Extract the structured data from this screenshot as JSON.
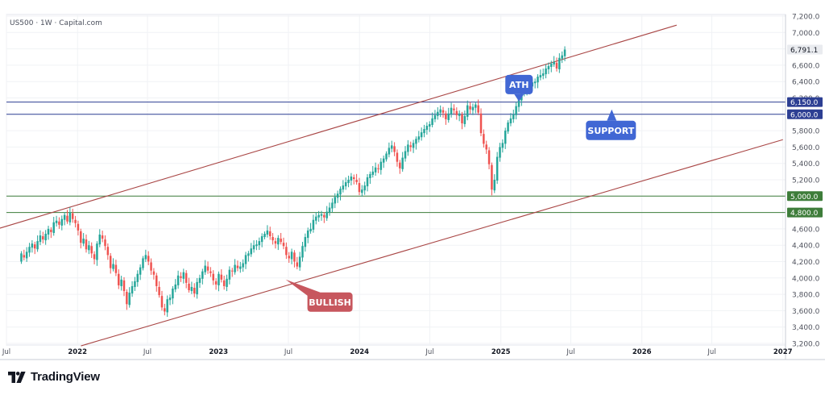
{
  "header": {
    "symbol_label": "US500 · 1W · Capital.com"
  },
  "brand": {
    "name": "TradingView",
    "icon": "tradingview-logo-icon"
  },
  "colors": {
    "up": "#26a69a",
    "down": "#ef5350",
    "channel": "#a94645",
    "resistance_line": "#2d3f93",
    "support_line": "#3e7d3a",
    "callout_blue": "#4167d4",
    "callout_red": "#c7575e"
  },
  "chart_data": {
    "type": "candlestick",
    "title": "",
    "xlabel": "",
    "ylabel": "",
    "x_ticks": [
      "Jul",
      "2022",
      "Jul",
      "2023",
      "Jul",
      "2024",
      "Jul",
      "2025",
      "Jul",
      "2026",
      "Jul",
      "2027"
    ],
    "y_ticks": [
      "7,200.0",
      "7,000.0",
      "6,800.0",
      "6,600.0",
      "6,400.0",
      "6,200.0",
      "6,000.0",
      "5,800.0",
      "5,600.0",
      "5,400.0",
      "5,200.0",
      "5,000.0",
      "4,800.0",
      "4,600.0",
      "4,400.0",
      "4,200.0",
      "4,000.0",
      "3,800.0",
      "3,600.0",
      "3,400.0",
      "3,200.0"
    ],
    "ylim": [
      3150,
      7250
    ],
    "last_price": {
      "value": 6791.1,
      "label": "6,791.1"
    },
    "horizontal_levels": [
      {
        "value": 6150,
        "label": "6,150.0",
        "color": "#2d3f93"
      },
      {
        "value": 6000,
        "label": "6,000.0",
        "color": "#2d3f93"
      },
      {
        "value": 5000,
        "label": "5,000.0",
        "color": "#3e7d3a"
      },
      {
        "value": 4800,
        "label": "4,800.0",
        "color": "#3e7d3a"
      }
    ],
    "annotations": [
      {
        "text": "ATH",
        "anchor_date": "2025-02-17",
        "anchor_price": 6147
      },
      {
        "text": "SUPPORT",
        "anchor_date": "2025-10-15",
        "anchor_price": 6000
      },
      {
        "text": "BULLISH",
        "anchor_date": "2023-08-15",
        "anchor_price": 4000
      }
    ],
    "channel": {
      "upper": {
        "start": [
          "2021-06-01",
          4590
        ],
        "end": [
          "2026-04-01",
          7090
        ]
      },
      "lower": {
        "start": [
          "2022-01-10",
          3170
        ],
        "end": [
          "2027-01-01",
          5690
        ]
      }
    },
    "series": [
      {
        "values": [
          [
            4200,
            4300
          ],
          [
            4280,
            4250
          ],
          [
            4240,
            4320
          ],
          [
            4310,
            4380
          ],
          [
            4370,
            4420
          ],
          [
            4410,
            4360
          ],
          [
            4350,
            4450
          ],
          [
            4440,
            4520
          ],
          [
            4510,
            4470
          ],
          [
            4460,
            4540
          ],
          [
            4530,
            4600
          ],
          [
            4590,
            4560
          ],
          [
            4550,
            4680
          ],
          [
            4670,
            4700
          ],
          [
            4690,
            4650
          ],
          [
            4640,
            4720
          ],
          [
            4710,
            4770
          ],
          [
            4760,
            4690
          ],
          [
            4680,
            4800
          ],
          [
            4790,
            4720
          ],
          [
            4710,
            4670
          ],
          [
            4660,
            4580
          ],
          [
            4570,
            4430
          ],
          [
            4420,
            4480
          ],
          [
            4470,
            4350
          ],
          [
            4340,
            4400
          ],
          [
            4390,
            4300
          ],
          [
            4290,
            4230
          ],
          [
            4220,
            4420
          ],
          [
            4410,
            4530
          ],
          [
            4520,
            4480
          ],
          [
            4470,
            4390
          ],
          [
            4380,
            4280
          ],
          [
            4270,
            4120
          ],
          [
            4110,
            4170
          ],
          [
            4160,
            4060
          ],
          [
            4050,
            3910
          ],
          [
            3900,
            3980
          ],
          [
            3970,
            3840
          ],
          [
            3830,
            3680
          ],
          [
            3670,
            3820
          ],
          [
            3810,
            3900
          ],
          [
            3890,
            3960
          ],
          [
            3950,
            4050
          ],
          [
            4040,
            4130
          ],
          [
            4120,
            4240
          ],
          [
            4230,
            4280
          ],
          [
            4270,
            4200
          ],
          [
            4190,
            4090
          ],
          [
            4080,
            4040
          ],
          [
            4030,
            3900
          ],
          [
            3890,
            3790
          ],
          [
            3780,
            3640
          ],
          [
            3630,
            3590
          ],
          [
            3580,
            3740
          ],
          [
            3730,
            3760
          ],
          [
            3750,
            3870
          ],
          [
            3860,
            3920
          ],
          [
            3910,
            4030
          ],
          [
            4020,
            4000
          ],
          [
            3990,
            4070
          ],
          [
            4060,
            3940
          ],
          [
            3930,
            3850
          ],
          [
            3840,
            3890
          ],
          [
            3880,
            3810
          ],
          [
            3800,
            3950
          ],
          [
            3940,
            4000
          ],
          [
            3990,
            4080
          ],
          [
            4070,
            4150
          ],
          [
            4140,
            4090
          ],
          [
            4080,
            4060
          ],
          [
            4050,
            3970
          ],
          [
            3960,
            3920
          ],
          [
            3910,
            4050
          ],
          [
            4040,
            3980
          ],
          [
            3970,
            3900
          ],
          [
            3890,
            3990
          ],
          [
            3980,
            4100
          ],
          [
            4090,
            4080
          ],
          [
            4070,
            4160
          ],
          [
            4150,
            4120
          ],
          [
            4110,
            4140
          ],
          [
            4130,
            4180
          ],
          [
            4170,
            4280
          ],
          [
            4270,
            4300
          ],
          [
            4290,
            4360
          ],
          [
            4350,
            4400
          ],
          [
            4390,
            4410
          ],
          [
            4400,
            4450
          ],
          [
            4440,
            4510
          ],
          [
            4500,
            4540
          ],
          [
            4530,
            4580
          ],
          [
            4570,
            4510
          ],
          [
            4500,
            4460
          ],
          [
            4450,
            4420
          ],
          [
            4410,
            4490
          ],
          [
            4480,
            4440
          ],
          [
            4430,
            4390
          ],
          [
            4380,
            4280
          ],
          [
            4270,
            4240
          ],
          [
            4230,
            4320
          ],
          [
            4310,
            4200
          ],
          [
            4190,
            4140
          ],
          [
            4130,
            4260
          ],
          [
            4250,
            4390
          ],
          [
            4380,
            4500
          ],
          [
            4490,
            4580
          ],
          [
            4570,
            4600
          ],
          [
            4590,
            4710
          ],
          [
            4700,
            4750
          ],
          [
            4740,
            4770
          ],
          [
            4760,
            4780
          ],
          [
            4770,
            4740
          ],
          [
            4730,
            4810
          ],
          [
            4800,
            4860
          ],
          [
            4850,
            4920
          ],
          [
            4910,
            4990
          ],
          [
            4980,
            5030
          ],
          [
            5020,
            5090
          ],
          [
            5080,
            5130
          ],
          [
            5120,
            5170
          ],
          [
            5160,
            5200
          ],
          [
            5190,
            5240
          ],
          [
            5230,
            5210
          ],
          [
            5200,
            5170
          ],
          [
            5160,
            5050
          ],
          [
            5040,
            5080
          ],
          [
            5070,
            5130
          ],
          [
            5120,
            5230
          ],
          [
            5220,
            5270
          ],
          [
            5260,
            5300
          ],
          [
            5290,
            5350
          ],
          [
            5340,
            5330
          ],
          [
            5320,
            5420
          ],
          [
            5410,
            5460
          ],
          [
            5450,
            5520
          ],
          [
            5510,
            5590
          ],
          [
            5580,
            5620
          ],
          [
            5610,
            5540
          ],
          [
            5530,
            5420
          ],
          [
            5410,
            5340
          ],
          [
            5330,
            5470
          ],
          [
            5460,
            5550
          ],
          [
            5540,
            5630
          ],
          [
            5620,
            5600
          ],
          [
            5590,
            5650
          ],
          [
            5640,
            5700
          ],
          [
            5690,
            5730
          ],
          [
            5720,
            5780
          ],
          [
            5770,
            5820
          ],
          [
            5810,
            5860
          ],
          [
            5850,
            5880
          ],
          [
            5870,
            5950
          ],
          [
            5940,
            5990
          ],
          [
            5980,
            6030
          ],
          [
            6020,
            6060
          ],
          [
            6050,
            6020
          ],
          [
            6010,
            5940
          ],
          [
            5930,
            6010
          ],
          [
            6000,
            6080
          ],
          [
            6070,
            6050
          ],
          [
            6040,
            5990
          ],
          [
            5980,
            6010
          ],
          [
            6000,
            5890
          ],
          [
            5880,
            5980
          ],
          [
            5970,
            6110
          ],
          [
            6100,
            6060
          ],
          [
            6050,
            6090
          ],
          [
            6080,
            6120
          ],
          [
            6110,
            6020
          ],
          [
            6010,
            5770
          ],
          [
            5760,
            5640
          ],
          [
            5630,
            5570
          ],
          [
            5560,
            5390
          ],
          [
            5380,
            5080
          ],
          [
            5070,
            5200
          ],
          [
            5190,
            5480
          ],
          [
            5470,
            5600
          ],
          [
            5590,
            5650
          ],
          [
            5640,
            5800
          ],
          [
            5790,
            5900
          ],
          [
            5890,
            5950
          ],
          [
            5940,
            6000
          ],
          [
            5990,
            6100
          ],
          [
            6090,
            6180
          ],
          [
            6170,
            6260
          ],
          [
            6250,
            6280
          ],
          [
            6270,
            6300
          ],
          [
            6290,
            6350
          ],
          [
            6340,
            6390
          ],
          [
            6380,
            6400
          ],
          [
            6390,
            6460
          ],
          [
            6450,
            6480
          ],
          [
            6470,
            6500
          ],
          [
            6490,
            6560
          ],
          [
            6550,
            6590
          ],
          [
            6580,
            6620
          ],
          [
            6610,
            6640
          ],
          [
            6630,
            6560
          ],
          [
            6550,
            6690
          ],
          [
            6680,
            6720
          ],
          [
            6710,
            6791.1
          ]
        ]
      }
    ]
  }
}
